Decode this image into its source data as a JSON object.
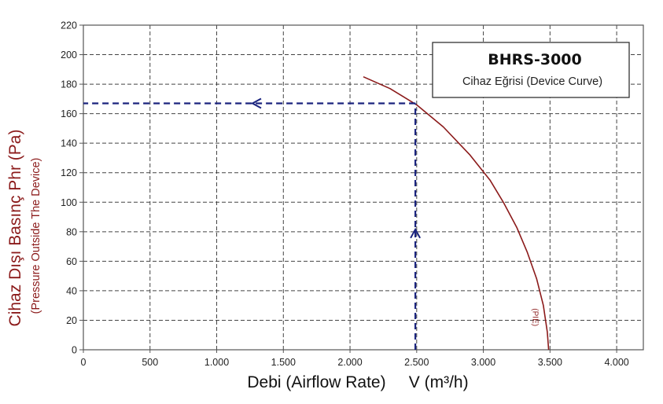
{
  "chart_data": {
    "type": "line",
    "title": "BHRS-3000",
    "subtitle": "Cihaz Eğrisi (Device Curve)",
    "xlabel": "Debi (Airflow Rate)     V (m³/h)",
    "ylabel": "Cihaz Dışı Basınç Phr (Pa)",
    "ylabel_sub": "(Pressure Outside The Device)",
    "xlim": [
      0,
      4200
    ],
    "ylim": [
      0,
      220
    ],
    "x_ticks": [
      0,
      500,
      1000,
      1500,
      2000,
      2500,
      3000,
      3500,
      4000
    ],
    "x_tick_labels": [
      "0",
      "500",
      "1.000",
      "1.500",
      "2.000",
      "2.500",
      "3.000",
      "3.500",
      "4.000"
    ],
    "y_ticks": [
      0,
      20,
      40,
      60,
      80,
      100,
      120,
      140,
      160,
      180,
      200,
      220
    ],
    "y_tick_labels": [
      "0",
      "20",
      "40",
      "60",
      "80",
      "100",
      "120",
      "140",
      "160",
      "180",
      "200",
      "220"
    ],
    "grid": true,
    "legend": "top-right",
    "series": [
      {
        "name": "",
        "color": "#8b1a1a",
        "x": [
          2100,
          2300,
          2500,
          2700,
          2900,
          3050,
          3150,
          3250,
          3330,
          3400,
          3450,
          3480,
          3490
        ],
        "y": [
          185,
          177,
          166,
          151,
          132,
          115,
          100,
          83,
          66,
          48,
          30,
          12,
          0
        ],
        "curve_label": "(PIE)"
      }
    ],
    "operating_point": {
      "x": 2490,
      "y": 167,
      "color": "#1a237e"
    }
  }
}
